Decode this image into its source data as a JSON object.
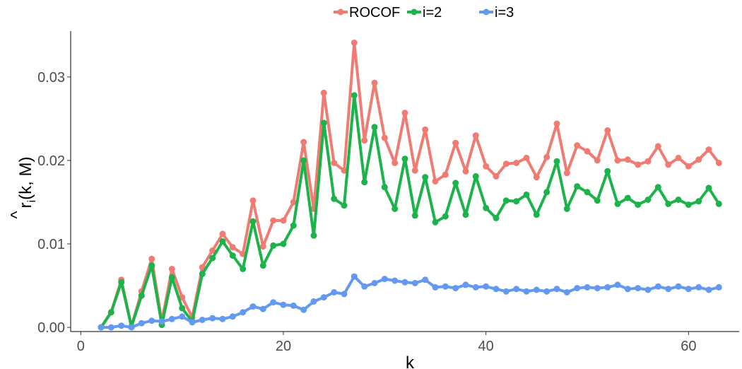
{
  "chart_data": {
    "type": "line",
    "xlabel": "k",
    "ylabel": "r̂i(k, M)",
    "ylabel_hat": "^",
    "ylabel_r": "r",
    "ylabel_sub": "i",
    "ylabel_rest": "(k, M)",
    "xlim": [
      -1,
      65
    ],
    "ylim": [
      -0.0005,
      0.0355
    ],
    "xticks": [
      0,
      20,
      40,
      60
    ],
    "xtick_labels": [
      "0",
      "20",
      "40",
      "60"
    ],
    "yticks": [
      0,
      0.01,
      0.02,
      0.03
    ],
    "ytick_labels": [
      "0.00",
      "0.01",
      "0.02",
      "0.03"
    ],
    "grid": false,
    "legend_position": "top",
    "x": [
      2,
      3,
      4,
      5,
      6,
      7,
      8,
      9,
      10,
      11,
      12,
      13,
      14,
      15,
      16,
      17,
      18,
      19,
      20,
      21,
      22,
      23,
      24,
      25,
      26,
      27,
      28,
      29,
      30,
      31,
      32,
      33,
      34,
      35,
      36,
      37,
      38,
      39,
      40,
      41,
      42,
      43,
      44,
      45,
      46,
      47,
      48,
      49,
      50,
      51,
      52,
      53,
      54,
      55,
      56,
      57,
      58,
      59,
      60,
      61,
      62,
      63
    ],
    "series": [
      {
        "name": "ROCOF",
        "color": "#f07b72",
        "values": [
          0,
          0.0018,
          0.0057,
          0.0001,
          0.0043,
          0.0082,
          0.0007,
          0.007,
          0.0036,
          0.0012,
          0.0072,
          0.0092,
          0.0112,
          0.0096,
          0.0088,
          0.0152,
          0.0097,
          0.0128,
          0.0128,
          0.015,
          0.0222,
          0.0142,
          0.0281,
          0.0197,
          0.0188,
          0.0341,
          0.0224,
          0.0293,
          0.0227,
          0.0197,
          0.0257,
          0.0188,
          0.0237,
          0.0175,
          0.0183,
          0.0221,
          0.0187,
          0.023,
          0.0193,
          0.0181,
          0.0196,
          0.0197,
          0.0203,
          0.018,
          0.0204,
          0.0244,
          0.0185,
          0.0218,
          0.0211,
          0.02,
          0.0236,
          0.02,
          0.0201,
          0.0195,
          0.0199,
          0.0217,
          0.0195,
          0.0203,
          0.0193,
          0.0201,
          0.0213,
          0.0197
        ]
      },
      {
        "name": "i=2",
        "color": "#1cb34a",
        "values": [
          0,
          0.0018,
          0.0054,
          0.0001,
          0.0038,
          0.0074,
          0.0003,
          0.006,
          0.0023,
          0.0007,
          0.0064,
          0.0083,
          0.0103,
          0.0086,
          0.007,
          0.0127,
          0.0074,
          0.0098,
          0.01,
          0.0122,
          0.02,
          0.011,
          0.0245,
          0.0154,
          0.0146,
          0.0278,
          0.0174,
          0.024,
          0.0168,
          0.0142,
          0.0202,
          0.0134,
          0.018,
          0.0126,
          0.0133,
          0.0173,
          0.0135,
          0.0181,
          0.0143,
          0.0131,
          0.0152,
          0.0151,
          0.0159,
          0.0135,
          0.0162,
          0.0199,
          0.0142,
          0.0169,
          0.0162,
          0.0152,
          0.0187,
          0.0148,
          0.0155,
          0.0147,
          0.0153,
          0.0168,
          0.0148,
          0.0153,
          0.0147,
          0.0151,
          0.0167,
          0.0148
        ]
      },
      {
        "name": "i=3",
        "color": "#6399f0",
        "values": [
          0,
          0,
          0.0002,
          0,
          0.0005,
          0.0008,
          0.0007,
          0.001,
          0.0013,
          0.0006,
          0.0009,
          0.0011,
          0.001,
          0.0013,
          0.0018,
          0.0025,
          0.0022,
          0.003,
          0.0027,
          0.0026,
          0.0021,
          0.0031,
          0.0036,
          0.0042,
          0.004,
          0.0061,
          0.0049,
          0.0053,
          0.0058,
          0.0056,
          0.0054,
          0.0053,
          0.0057,
          0.0048,
          0.0049,
          0.0047,
          0.0051,
          0.0048,
          0.0049,
          0.0046,
          0.0043,
          0.0046,
          0.0043,
          0.0045,
          0.0043,
          0.0046,
          0.0042,
          0.0047,
          0.0048,
          0.0047,
          0.0048,
          0.0051,
          0.0046,
          0.0047,
          0.0045,
          0.0049,
          0.0046,
          0.0049,
          0.0046,
          0.0048,
          0.0045,
          0.0048
        ]
      }
    ]
  }
}
